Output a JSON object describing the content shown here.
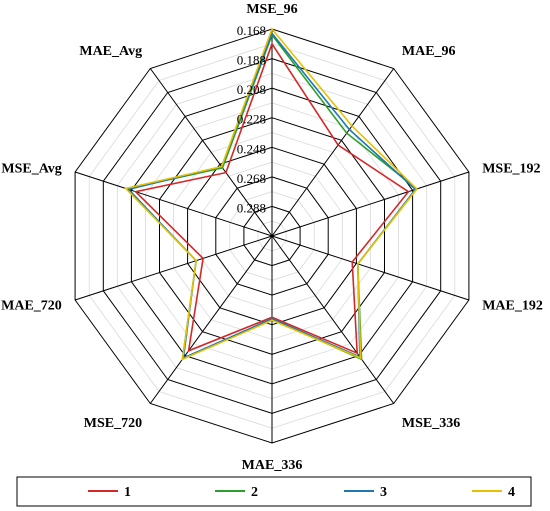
{
  "chart_data": {
    "type": "radar",
    "title": "",
    "axes": [
      "MSE_96",
      "MAE_96",
      "MSE_192",
      "MAE_192",
      "MSE_336",
      "MAE_336",
      "MSE_720",
      "MAE_720",
      "MSE_Avg",
      "MAE_Avg"
    ],
    "radial_ticks": [
      "0.168",
      "0.188",
      "0.208",
      "0.228",
      "0.248",
      "0.268",
      "0.288"
    ],
    "radial_range": [
      0.168,
      0.308
    ],
    "radial_inverted": true,
    "grid": true,
    "legend_position": "bottom",
    "series": [
      {
        "name": "1",
        "color": "#d62728",
        "values": [
          0.178,
          0.232,
          0.211,
          0.251,
          0.21,
          0.253,
          0.212,
          0.259,
          0.211,
          0.255
        ]
      },
      {
        "name": "2",
        "color": "#2ca02c",
        "values": [
          0.172,
          0.222,
          0.205,
          0.247,
          0.205,
          0.252,
          0.205,
          0.254,
          0.205,
          0.251
        ]
      },
      {
        "name": "3",
        "color": "#1f77b4",
        "values": [
          0.171,
          0.219,
          0.206,
          0.247,
          0.207,
          0.252,
          0.206,
          0.254,
          0.206,
          0.25
        ]
      },
      {
        "name": "4",
        "color": "#e5c100",
        "values": [
          0.168,
          0.216,
          0.205,
          0.247,
          0.206,
          0.251,
          0.205,
          0.254,
          0.204,
          0.25
        ]
      }
    ]
  }
}
